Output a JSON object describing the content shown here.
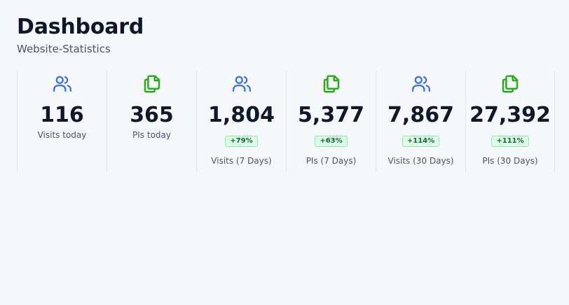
{
  "header": {
    "title": "Dashboard",
    "subtitle": "Website-Statistics"
  },
  "colors": {
    "visits_icon": "#3b6ef5",
    "pis_icon": "#22b014",
    "badge_bg": "#dcfce7",
    "badge_text": "#166534"
  },
  "stats": [
    {
      "icon": "users-icon",
      "value": "116",
      "badge": null,
      "label": "Visits today"
    },
    {
      "icon": "copy-icon",
      "value": "365",
      "badge": null,
      "label": "PIs today"
    },
    {
      "icon": "users-icon",
      "value": "1,804",
      "badge": "+79%",
      "label": "Visits (7 Days)"
    },
    {
      "icon": "copy-icon",
      "value": "5,377",
      "badge": "+63%",
      "label": "PIs (7 Days)"
    },
    {
      "icon": "users-icon",
      "value": "7,867",
      "badge": "+114%",
      "label": "Visits (30 Days)"
    },
    {
      "icon": "copy-icon",
      "value": "27,392",
      "badge": "+111%",
      "label": "PIs (30 Days)"
    }
  ]
}
